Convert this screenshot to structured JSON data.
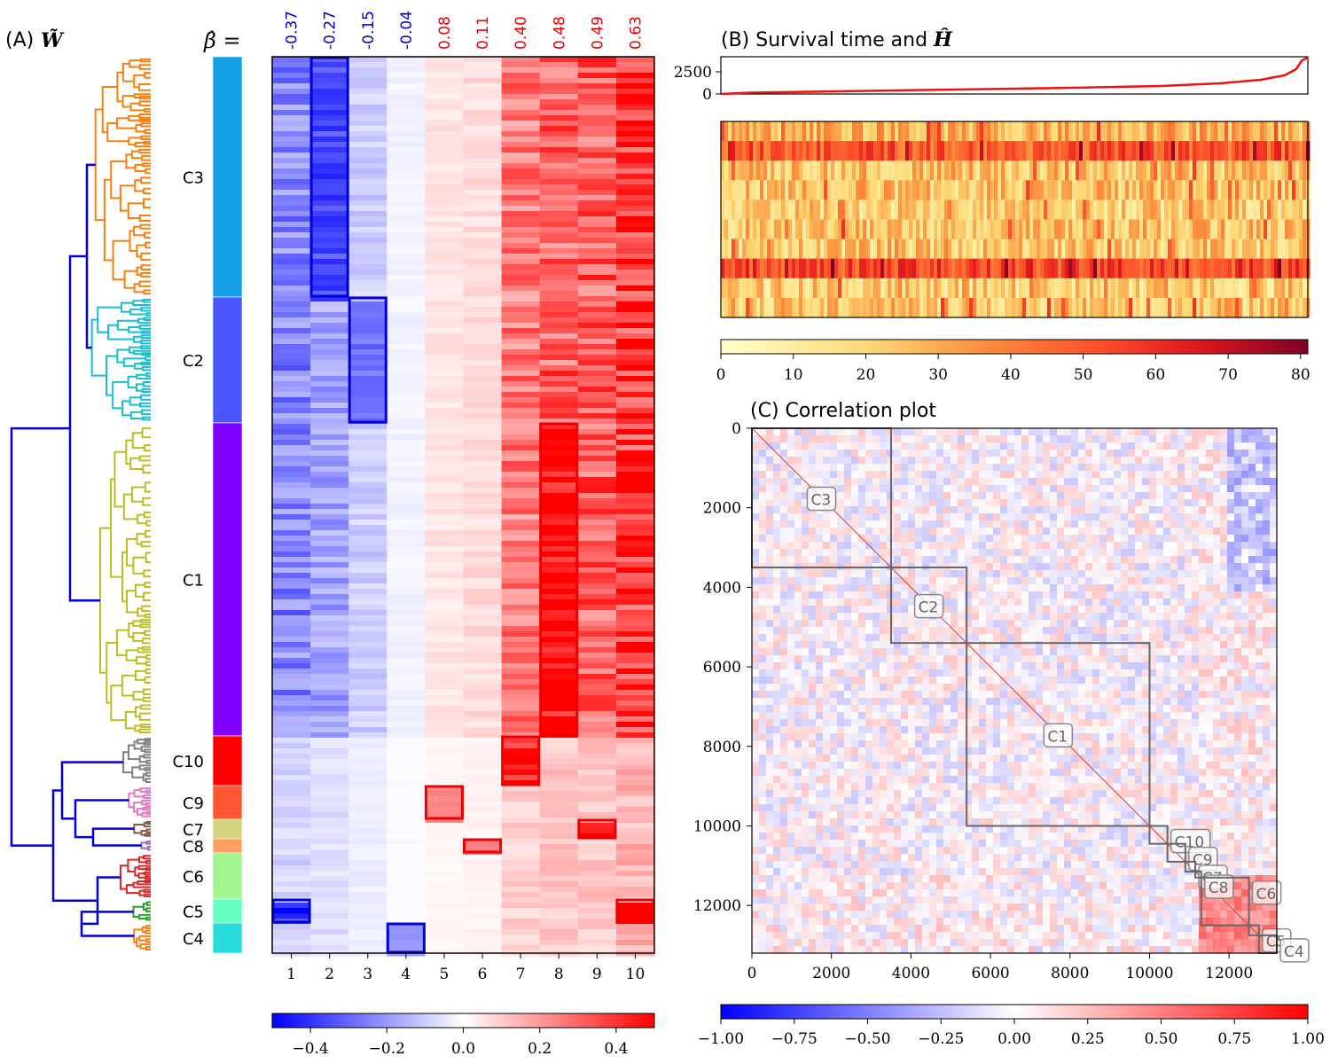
{
  "panelA": {
    "title_prefix": "(A)",
    "title_symbol": "W̃",
    "beta_label": "β̂ =",
    "clusters": [
      {
        "name": "C3",
        "color": "#129FE8",
        "dendro_color": "#F77F0E"
      },
      {
        "name": "C2",
        "color": "#4A55FF",
        "dendro_color": "#17BECF"
      },
      {
        "name": "C1",
        "color": "#8000FF",
        "dendro_color": "#BCBD22"
      },
      {
        "name": "C10",
        "color": "#FF0000",
        "dendro_color": "#7F7F7F"
      },
      {
        "name": "C9",
        "color": "#FF5533",
        "dendro_color": "#E377C2"
      },
      {
        "name": "C7",
        "color": "#D4D480",
        "dendro_color": "#8C564B"
      },
      {
        "name": "C8",
        "color": "#FFA060",
        "dendro_color": "#9467BD"
      },
      {
        "name": "C6",
        "color": "#A0F590",
        "dendro_color": "#D62728"
      },
      {
        "name": "C5",
        "color": "#66FFC2",
        "dendro_color": "#2CA02C"
      },
      {
        "name": "C4",
        "color": "#2ADDDD",
        "dendro_color": "#F77F0E"
      }
    ],
    "link_color": "#0000DD"
  },
  "chart_data": [
    {
      "type": "heatmap",
      "title": "",
      "columns": [
        "1",
        "2",
        "3",
        "4",
        "5",
        "6",
        "7",
        "8",
        "9",
        "10"
      ],
      "beta": [
        "-0.37",
        "-0.27",
        "-0.15",
        "-0.04",
        "0.08",
        "0.11",
        "0.40",
        "0.48",
        "0.49",
        "0.63"
      ],
      "beta_values": [
        -0.37,
        -0.27,
        -0.15,
        -0.04,
        0.08,
        0.11,
        0.4,
        0.48,
        0.49,
        0.63
      ],
      "rows_clusters": [
        "C3",
        "C2",
        "C1",
        "C10",
        "C9",
        "C7",
        "C8",
        "C6",
        "C5",
        "C4"
      ],
      "highlight_boxes": [
        {
          "cluster": "C3",
          "columns": [
            2
          ],
          "sign": "negative"
        },
        {
          "cluster": "C2",
          "columns": [
            3
          ],
          "sign": "negative"
        },
        {
          "cluster": "C1",
          "columns": [
            8
          ],
          "sign": "positive"
        },
        {
          "cluster": "C10",
          "columns": [
            7
          ],
          "sign": "positive"
        },
        {
          "cluster": "C9",
          "columns": [
            5
          ],
          "sign": "positive"
        },
        {
          "cluster": "C7",
          "columns": [
            9
          ],
          "sign": "positive"
        },
        {
          "cluster": "C8",
          "columns": [
            6
          ],
          "sign": "positive"
        },
        {
          "cluster": "C5",
          "columns": [
            1
          ],
          "sign": "negative"
        },
        {
          "cluster": "C5",
          "columns": [
            10
          ],
          "sign": "positive"
        },
        {
          "cluster": "C4",
          "columns": [
            4
          ],
          "sign": "negative"
        }
      ],
      "colorbar": {
        "ticks": [
          "−0.4",
          "−0.2",
          "0.0",
          "0.2",
          "0.4"
        ],
        "tick_values": [
          -0.4,
          -0.2,
          0.0,
          0.2,
          0.4
        ],
        "range": [
          -0.5,
          0.5
        ],
        "cmap": "bwr"
      }
    },
    {
      "type": "line",
      "title": "Survival time and",
      "title_symbol": "Ĥ",
      "yticks": [
        "2500",
        "0"
      ],
      "ytick_values": [
        2500,
        0
      ],
      "ylim": [
        0,
        4200
      ],
      "series": [
        {
          "color": "#EE1111",
          "values_description": "sorted increasing",
          "x": [
            0,
            0.05,
            0.2,
            0.4,
            0.6,
            0.75,
            0.85,
            0.92,
            0.96,
            0.98,
            0.99,
            1.0
          ],
          "values": [
            0,
            150,
            300,
            500,
            700,
            900,
            1200,
            1600,
            2100,
            2800,
            3800,
            4100
          ]
        }
      ],
      "heatmap_rows": 10,
      "colorbar": {
        "ticks": [
          "0",
          "10",
          "20",
          "30",
          "40",
          "50",
          "60",
          "70",
          "80"
        ],
        "tick_values": [
          0,
          10,
          20,
          30,
          40,
          50,
          60,
          70,
          80
        ],
        "range": [
          0,
          81
        ],
        "cmap": "YlOrRd"
      }
    },
    {
      "type": "heatmap",
      "title": "(C) Correlation plot",
      "xticks": [
        "0",
        "2000",
        "4000",
        "6000",
        "8000",
        "10000",
        "12000"
      ],
      "yticks": [
        "0",
        "2000",
        "4000",
        "6000",
        "8000",
        "10000",
        "12000"
      ],
      "tick_values": [
        0,
        2000,
        4000,
        6000,
        8000,
        10000,
        12000
      ],
      "range": [
        0,
        13200
      ],
      "blocks": [
        {
          "name": "C3",
          "start": 0,
          "end": 3500
        },
        {
          "name": "C2",
          "start": 3500,
          "end": 5400
        },
        {
          "name": "C1",
          "start": 5400,
          "end": 10000
        },
        {
          "name": "C10",
          "start": 10000,
          "end": 10450
        },
        {
          "name": "C9",
          "start": 10450,
          "end": 10900
        },
        {
          "name": "C7",
          "start": 10900,
          "end": 11150
        },
        {
          "name": "C8",
          "start": 11150,
          "end": 11300
        },
        {
          "name": "C6",
          "start": 11300,
          "end": 12500
        },
        {
          "name": "C5",
          "start": 12500,
          "end": 12750
        },
        {
          "name": "C4",
          "start": 12750,
          "end": 13200
        }
      ],
      "colorbar": {
        "ticks": [
          "−1.00",
          "−0.75",
          "−0.50",
          "−0.25",
          "0.00",
          "0.25",
          "0.50",
          "0.75",
          "1.00"
        ],
        "tick_values": [
          -1,
          -0.75,
          -0.5,
          -0.25,
          0,
          0.25,
          0.5,
          0.75,
          1
        ],
        "range": [
          -1,
          1
        ],
        "cmap": "bwr"
      }
    }
  ]
}
